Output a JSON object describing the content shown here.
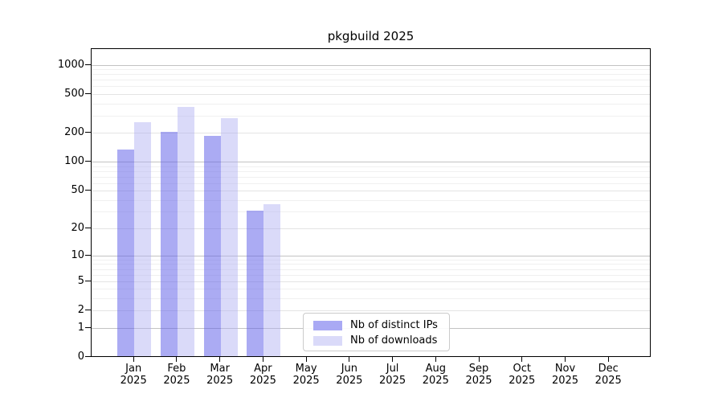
{
  "figure": {
    "background": "#ffffff"
  },
  "chart_data": {
    "type": "bar",
    "title": "pkgbuild 2025",
    "year": "2025",
    "categories": [
      "Jan",
      "Feb",
      "Mar",
      "Apr",
      "May",
      "Jun",
      "Jul",
      "Aug",
      "Sep",
      "Oct",
      "Nov",
      "Dec"
    ],
    "series": [
      {
        "name": "Nb of distinct IPs",
        "bar_color": "rgba(93,93,232,0.52)",
        "legend_color": "#a9a9f4",
        "values": [
          130,
          200,
          180,
          30,
          0,
          0,
          0,
          0,
          0,
          0,
          0,
          0
        ]
      },
      {
        "name": "Nb of downloads",
        "bar_color": "rgba(173,173,242,0.45)",
        "legend_color": "#dadaf9",
        "values": [
          250,
          360,
          275,
          35,
          0,
          0,
          0,
          0,
          0,
          0,
          0,
          0
        ]
      }
    ],
    "xlabel": "",
    "ylabel": "",
    "yscale": "log1p",
    "ylim": [
      0,
      1470
    ],
    "yticks": [
      0,
      1,
      2,
      5,
      10,
      20,
      50,
      100,
      200,
      500,
      1000
    ],
    "decade_ticks": [
      1,
      10,
      100,
      1000
    ],
    "minor_ticks": [
      3,
      4,
      6,
      7,
      8,
      9,
      30,
      40,
      60,
      70,
      80,
      90,
      300,
      400,
      600,
      700,
      800,
      900
    ],
    "grid": "on",
    "legend_position": "bottom-center"
  },
  "colors": {
    "grid_decade": "#c3c3c3",
    "grid_major": "#e4e4e4",
    "grid_minor": "#f0f0f0",
    "spine": "#000000",
    "legend_border": "#cbcbcb",
    "text": "#000000"
  }
}
